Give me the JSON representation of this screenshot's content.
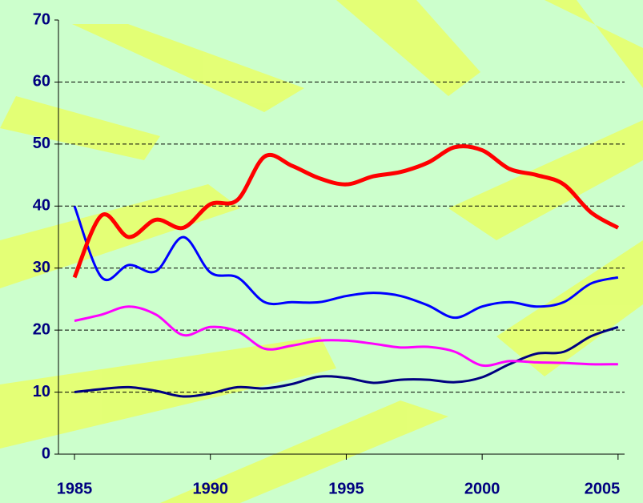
{
  "chart_data": {
    "type": "line",
    "x": [
      1985,
      1986,
      1987,
      1988,
      1989,
      1990,
      1991,
      1992,
      1993,
      1994,
      1995,
      1996,
      1997,
      1998,
      1999,
      2000,
      2001,
      2002,
      2003,
      2004,
      2005
    ],
    "series": [
      {
        "color": "#ff0000",
        "values": [
          28.5,
          38.5,
          35,
          37.8,
          36.5,
          40.3,
          41,
          48,
          46.5,
          44.5,
          43.5,
          44.8,
          45.5,
          47,
          49.5,
          49,
          46,
          45,
          43.5,
          39,
          36.5
        ]
      },
      {
        "color": "#0000ff",
        "values": [
          40,
          28.5,
          30.5,
          29.5,
          35,
          29.3,
          28.5,
          24.5,
          24.5,
          24.5,
          25.5,
          26,
          25.5,
          24,
          22,
          23.8,
          24.5,
          23.8,
          24.5,
          27.5,
          28.5
        ]
      },
      {
        "color": "#ff00ff",
        "values": [
          21.5,
          22.5,
          23.8,
          22.5,
          19.2,
          20.5,
          19.8,
          17,
          17.5,
          18.3,
          18.3,
          17.8,
          17.2,
          17.3,
          16.5,
          14.3,
          15,
          14.8,
          14.7,
          14.5,
          14.5
        ]
      },
      {
        "color": "#000080",
        "values": [
          10,
          10.5,
          10.8,
          10.2,
          9.3,
          9.8,
          10.8,
          10.6,
          11.3,
          12.5,
          12.3,
          11.5,
          12,
          12,
          11.6,
          12.4,
          14.5,
          16.2,
          16.5,
          19,
          20.5
        ]
      }
    ],
    "xlim": [
      1984.41,
      2005.24
    ],
    "xticks": [
      1985,
      1990,
      1995,
      2000,
      2005
    ],
    "ylim": [
      0,
      70
    ],
    "yticks": [
      0,
      10,
      20,
      30,
      40,
      50,
      60,
      70
    ],
    "grid": true
  }
}
